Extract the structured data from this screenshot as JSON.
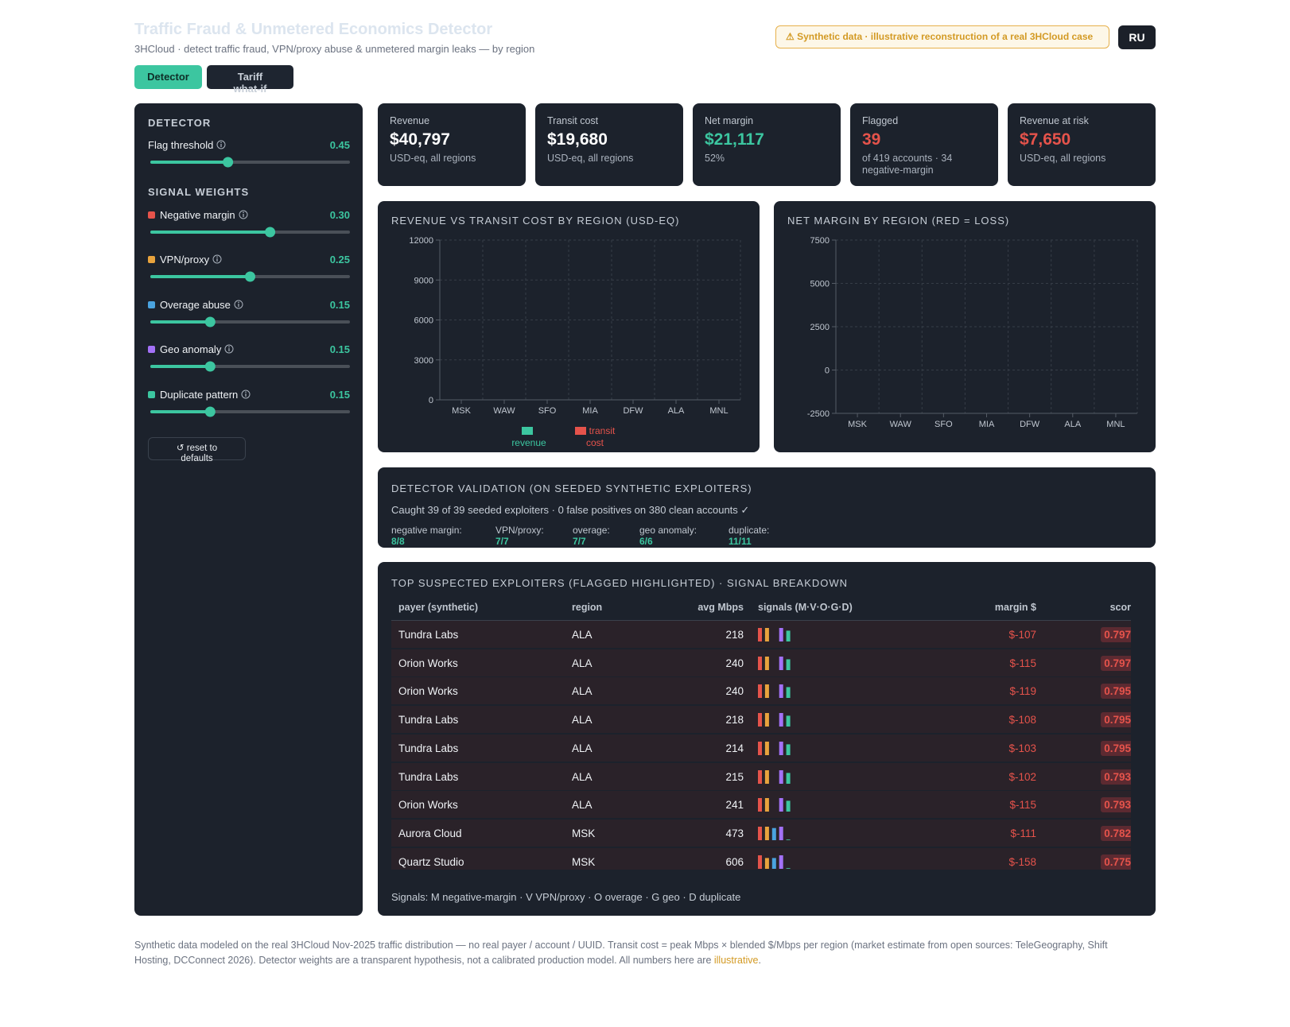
{
  "header": {
    "title": "Traffic Fraud & Unmetered Economics Detector",
    "subtitle": "3HCloud · detect traffic fraud, VPN/proxy abuse & unmetered margin leaks — by region",
    "badge": "⚠ Synthetic data · illustrative reconstruction of a real 3HCloud case",
    "lang": "RU"
  },
  "tabs": [
    "Detector",
    "Tariff what-if"
  ],
  "sidebar": {
    "title": "DETECTOR",
    "threshold": {
      "label": "Flag threshold",
      "value": 0.45,
      "range": [
        0.1,
        1
      ]
    },
    "weights_title": "SIGNAL WEIGHTS",
    "weights": [
      {
        "label": "Negative margin",
        "color": "#e5534b",
        "value": {
          "value": 0.3,
          "label": "0.30"
        },
        "range": [
          0,
          0.5
        ]
      },
      {
        "label": "VPN/proxy",
        "color": "#e8a33d",
        "value": 0.25,
        "range": [
          0,
          0.5
        ]
      },
      {
        "label": "Overage abuse",
        "color": "#4aa3df",
        "value": 0.15,
        "range": [
          0,
          0.5
        ]
      },
      {
        "label": "Geo anomaly",
        "color": "#a371f7",
        "value": 0.15,
        "range": [
          0,
          0.5
        ]
      },
      {
        "label": "Duplicate pattern",
        "color": "#3cc6a0",
        "value": 0.15,
        "range": [
          0,
          0.5
        ]
      }
    ],
    "reset": "↺ reset to defaults"
  },
  "kpis": [
    {
      "label": "Revenue",
      "value": "$40,797",
      "note": "USD-eq, all regions",
      "color": "#ffffff"
    },
    {
      "label": "Transit cost",
      "value": "$19,680",
      "note": "USD-eq, all regions",
      "color": "#ffffff"
    },
    {
      "label": "Net margin",
      "value": "$21,117",
      "note": "52%",
      "color": "#3cc6a0"
    },
    {
      "label": "Flagged",
      "value": "39",
      "note": "of 419 accounts · 34 negative-margin",
      "color": "#e5534b"
    },
    {
      "label": "Revenue at risk",
      "value": "$7,650",
      "note": "USD-eq, all regions",
      "color": "#e5534b"
    }
  ],
  "chart_data": [
    {
      "type": "bar",
      "title": "REVENUE VS TRANSIT COST BY REGION (USD-EQ)",
      "categories": [
        "MSK",
        "WAW",
        "SFO",
        "MIA",
        "DFW",
        "ALA",
        "MNL"
      ],
      "series": [
        {
          "name": "revenue",
          "color": "#3cc6a0"
        },
        {
          "name": "transit cost",
          "color": "#e5534b"
        }
      ],
      "ylim": [
        0,
        12000
      ],
      "yticks": [
        0,
        3000,
        6000,
        9000,
        12000
      ],
      "grid": true
    },
    {
      "type": "bar",
      "title": "NET MARGIN BY REGION (RED = LOSS)",
      "categories": [
        "MSK",
        "WAW",
        "SFO",
        "MIA",
        "DFW",
        "ALA",
        "MNL"
      ],
      "ylim": [
        -2500,
        7500
      ],
      "yticks": [
        -2500,
        0,
        2500,
        5000,
        7500
      ],
      "grid": true
    }
  ],
  "validation": {
    "title": "DETECTOR VALIDATION (ON SEEDED SYNTHETIC EXPLOITERS)",
    "summary": "Caught 39 of 39 seeded exploiters · 0 false positives on 380 clean accounts ✓",
    "stats": [
      {
        "label": "negative margin:",
        "value": "8/8"
      },
      {
        "label": "VPN/proxy:",
        "value": "7/7"
      },
      {
        "label": "overage:",
        "value": "7/7"
      },
      {
        "label": "geo anomaly:",
        "value": "6/6"
      },
      {
        "label": "duplicate:",
        "value": "11/11"
      }
    ]
  },
  "table": {
    "title": "TOP SUSPECTED EXPLOITERS (FLAGGED HIGHLIGHTED) · SIGNAL BREAKDOWN",
    "columns": [
      "payer (synthetic)",
      "region",
      "avg Mbps",
      "signals (M·V·O·G·D)",
      "margin $",
      "scor"
    ],
    "signals_range": [
      0,
      1
    ],
    "rows": [
      {
        "payer": "Tundra Labs",
        "region": "ALA",
        "mbps": 218,
        "signals": [
          1,
          1,
          0,
          1,
          0.8
        ],
        "margin": "$-107",
        "score": 0.797
      },
      {
        "payer": "Orion Works",
        "region": "ALA",
        "mbps": 240,
        "signals": [
          1,
          1,
          0,
          1,
          0.8
        ],
        "margin": "$-115",
        "score": 0.797
      },
      {
        "payer": "Orion Works",
        "region": "ALA",
        "mbps": 240,
        "signals": [
          1,
          1,
          0,
          1,
          0.8
        ],
        "margin": "$-119",
        "score": 0.795
      },
      {
        "payer": "Tundra Labs",
        "region": "ALA",
        "mbps": 218,
        "signals": [
          1,
          1,
          0,
          1,
          0.8
        ],
        "margin": "$-108",
        "score": 0.795
      },
      {
        "payer": "Tundra Labs",
        "region": "ALA",
        "mbps": 214,
        "signals": [
          1,
          1,
          0,
          1,
          0.8
        ],
        "margin": "$-103",
        "score": 0.795
      },
      {
        "payer": "Tundra Labs",
        "region": "ALA",
        "mbps": 215,
        "signals": [
          1,
          1,
          0,
          1,
          0.8
        ],
        "margin": "$-102",
        "score": 0.793
      },
      {
        "payer": "Orion Works",
        "region": "ALA",
        "mbps": 241,
        "signals": [
          1,
          1,
          0,
          1,
          0.8
        ],
        "margin": "$-115",
        "score": 0.793
      },
      {
        "payer": "Aurora Cloud",
        "region": "MSK",
        "mbps": 473,
        "signals": [
          1,
          1,
          0.9,
          1,
          0.05
        ],
        "margin": "$-111",
        "score": 0.782
      },
      {
        "payer": "Quartz Studio",
        "region": "MSK",
        "mbps": 606,
        "signals": [
          1,
          0.8,
          0.8,
          1,
          0.05
        ],
        "margin": "$-158",
        "score": 0.775
      }
    ],
    "legend": "Signals: M negative-margin · V VPN/proxy · O overage · G geo · D duplicate"
  },
  "footer": {
    "text": "Synthetic data modeled on the real 3HCloud Nov-2025 traffic distribution — no real payer / account / UUID. Transit cost = peak Mbps × blended $/Mbps per region (market estimate from open sources: TeleGeography, Shift Hosting, DCConnect 2026). Detector weights are a transparent hypothesis, not a calibrated production model. All numbers here are ",
    "highlight": "illustrative",
    "end": "."
  }
}
